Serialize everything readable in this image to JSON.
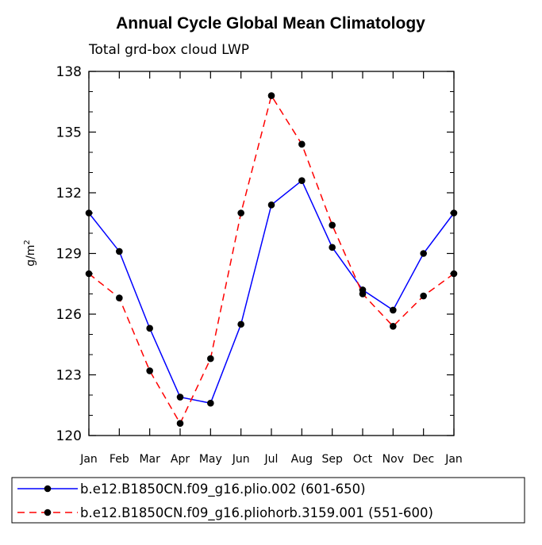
{
  "chart_data": {
    "type": "line",
    "title": "Annual Cycle Global Mean Climatology",
    "subtitle": "Total grd-box cloud LWP",
    "ylabel": "g/m",
    "ylabel_superscript": "2",
    "xlabel": "",
    "ylim": [
      120,
      138
    ],
    "yticks": [
      120,
      123,
      126,
      129,
      132,
      135,
      138
    ],
    "categories": [
      "Jan",
      "Feb",
      "Mar",
      "Apr",
      "May",
      "Jun",
      "Jul",
      "Aug",
      "Sep",
      "Oct",
      "Nov",
      "Dec",
      "Jan"
    ],
    "series": [
      {
        "name": "b.e12.B1850CN.f09_g16.plio.002 (601-650)",
        "color": "#0000ff",
        "dash": "solid",
        "values": [
          131.0,
          129.1,
          125.3,
          121.9,
          121.6,
          125.5,
          131.4,
          132.6,
          129.3,
          127.2,
          126.2,
          129.0,
          131.0
        ]
      },
      {
        "name": "b.e12.B1850CN.f09_g16.pliohorb.3159.001 (551-600)",
        "color": "#ff0000",
        "dash": "dashed",
        "values": [
          128.0,
          126.8,
          123.2,
          120.6,
          123.8,
          131.0,
          136.8,
          134.4,
          130.4,
          127.0,
          125.4,
          126.9,
          128.0
        ]
      }
    ],
    "legend_position": "bottom"
  }
}
